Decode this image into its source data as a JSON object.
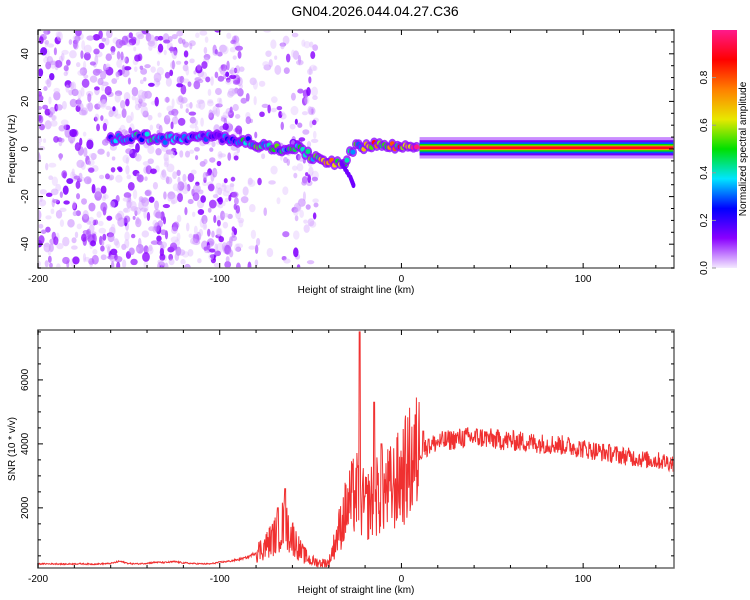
{
  "title": "GN04.2026.044.04.27.C36",
  "chart_data": [
    {
      "type": "heatmap",
      "name": "spectrogram",
      "xlabel": "Height of straight line (km)",
      "ylabel": "Frequency (Hz)",
      "xlim": [
        -200,
        150
      ],
      "ylim": [
        -50,
        50
      ],
      "xticks": [
        -200,
        -100,
        0,
        100
      ],
      "yticks": [
        -40,
        -20,
        0,
        20,
        40
      ],
      "colorbar": {
        "label": "Normalized spectral amplitude",
        "range": [
          0.0,
          1.0
        ],
        "ticks": [
          "0.0",
          "0.2",
          "0.4",
          "0.6",
          "0.8"
        ],
        "colors": [
          "#f4eaff",
          "#8a00ff",
          "#0000ff",
          "#00e5ff",
          "#00e000",
          "#e8e800",
          "#ff8000",
          "#ff0000",
          "#ff1a8c"
        ]
      },
      "ridge": [
        {
          "x": -160,
          "f": 4,
          "a": 0.35
        },
        {
          "x": -150,
          "f": 5,
          "a": 0.4
        },
        {
          "x": -140,
          "f": 5,
          "a": 0.45
        },
        {
          "x": -130,
          "f": 4,
          "a": 0.4
        },
        {
          "x": -100,
          "f": 5,
          "a": 0.3
        },
        {
          "x": -90,
          "f": 4,
          "a": 0.45
        },
        {
          "x": -80,
          "f": 2,
          "a": 0.5
        },
        {
          "x": -70,
          "f": 0,
          "a": 0.55
        },
        {
          "x": -60,
          "f": 1,
          "a": 0.5
        },
        {
          "x": -50,
          "f": -3,
          "a": 0.55
        },
        {
          "x": -40,
          "f": -5,
          "a": 0.7
        },
        {
          "x": -32,
          "f": -6,
          "a": 0.75
        },
        {
          "x": -30,
          "f": -4,
          "a": 0.5
        },
        {
          "x": -25,
          "f": 1,
          "a": 0.5
        },
        {
          "x": -15,
          "f": 2,
          "a": 0.8
        },
        {
          "x": -5,
          "f": 1,
          "a": 0.8
        },
        {
          "x": 5,
          "f": 1,
          "a": 0.9
        },
        {
          "x": 10,
          "f": 1,
          "a": 0.95
        }
      ],
      "branch": [
        {
          "x": -33,
          "f": -6
        },
        {
          "x": -28,
          "f": -12
        },
        {
          "x": -26,
          "f": -16
        }
      ],
      "steady_band": {
        "x_from": 10,
        "x_to": 150,
        "f": 0.5,
        "a": 1.0
      },
      "noise_regions": [
        {
          "x_from": -200,
          "x_to": -88,
          "density": 1.0
        },
        {
          "x_from": -88,
          "x_to": -62,
          "density": 0.3
        },
        {
          "x_from": -60,
          "x_to": -47,
          "density": 0.8
        }
      ]
    },
    {
      "type": "line",
      "name": "snr",
      "xlabel": "Height of straight line (km)",
      "ylabel": "SNR (10 * v/v)",
      "xlim": [
        -200,
        150
      ],
      "ylim": [
        120,
        7560
      ],
      "xticks": [
        -200,
        -100,
        0,
        100
      ],
      "yticks": [
        2000,
        4000,
        6000
      ],
      "color": "#f03030",
      "x": [
        -200,
        -195,
        -190,
        -185,
        -180,
        -175,
        -170,
        -165,
        -160,
        -155,
        -150,
        -145,
        -140,
        -135,
        -130,
        -125,
        -120,
        -115,
        -110,
        -105,
        -100,
        -95,
        -90,
        -85,
        -80,
        -75,
        -70,
        -65,
        -60,
        -55,
        -50,
        -45,
        -40,
        -35,
        -30,
        -25,
        -20,
        -15,
        -10,
        -5,
        0,
        5,
        10,
        15,
        20,
        25,
        30,
        35,
        40,
        45,
        50,
        55,
        60,
        65,
        70,
        75,
        80,
        85,
        90,
        95,
        100,
        105,
        110,
        115,
        120,
        125,
        130,
        135,
        140,
        145,
        150
      ],
      "y": [
        250,
        250,
        250,
        240,
        250,
        250,
        240,
        250,
        260,
        330,
        260,
        250,
        270,
        300,
        290,
        320,
        280,
        260,
        250,
        250,
        300,
        330,
        380,
        450,
        600,
        800,
        1100,
        1500,
        1100,
        600,
        350,
        280,
        280,
        1200,
        2000,
        2500,
        2000,
        2300,
        2500,
        2600,
        3000,
        3400,
        3750,
        3950,
        4050,
        4100,
        4150,
        4200,
        4200,
        4200,
        4150,
        4120,
        4100,
        4080,
        4050,
        4020,
        4000,
        3980,
        3950,
        3900,
        3850,
        3800,
        3750,
        3700,
        3650,
        3600,
        3550,
        3500,
        3480,
        3450,
        3400
      ],
      "spikes": [
        {
          "x": -23,
          "y": 7500
        },
        {
          "x": -15,
          "y": 5300
        },
        {
          "x": -64,
          "y": 2600
        },
        {
          "x": -68,
          "y": 2000
        },
        {
          "x": -11,
          "y": 4000
        },
        {
          "x": 12,
          "y": 4400
        },
        {
          "x": 15,
          "y": 4150
        }
      ]
    }
  ]
}
